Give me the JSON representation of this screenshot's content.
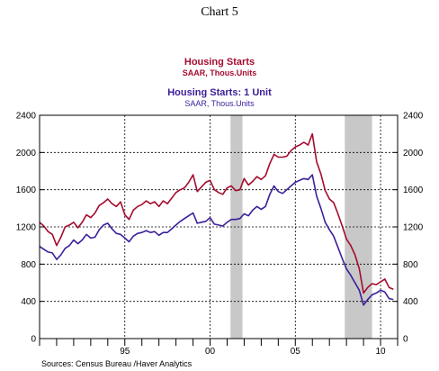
{
  "header": {
    "title": "Chart 5"
  },
  "chart_data": {
    "type": "line",
    "x_unit": "year",
    "xlim": [
      1990,
      2011
    ],
    "ylim": [
      0,
      2400
    ],
    "y_ticks": [
      0,
      400,
      800,
      1200,
      1600,
      2000,
      2400
    ],
    "x_tick_labels": [
      {
        "x": 1995,
        "label": "95"
      },
      {
        "x": 2000,
        "label": "00"
      },
      {
        "x": 2005,
        "label": "05"
      },
      {
        "x": 2010,
        "label": "10"
      }
    ],
    "grid": true,
    "recessions": [
      [
        2001.2,
        2001.9
      ],
      [
        2007.9,
        2009.5
      ]
    ],
    "colors": {
      "starts": "#a50b2e",
      "single": "#3c1e9a",
      "recession": "#c8c8c8"
    },
    "legend": [
      {
        "name": "Housing Starts",
        "subtitle": "SAAR, Thous.Units",
        "color": "#a50b2e"
      },
      {
        "name": "Housing Starts: 1 Unit",
        "subtitle": "SAAR, Thous.Units",
        "color": "#3c1e9a"
      }
    ],
    "series": [
      {
        "name": "Housing Starts",
        "x": [
          1990.0,
          1990.25,
          1990.5,
          1990.75,
          1991.0,
          1991.25,
          1991.5,
          1991.75,
          1992.0,
          1992.25,
          1992.5,
          1992.75,
          1993.0,
          1993.25,
          1993.5,
          1993.75,
          1994.0,
          1994.25,
          1994.5,
          1994.75,
          1995.0,
          1995.25,
          1995.5,
          1995.75,
          1996.0,
          1996.25,
          1996.5,
          1996.75,
          1997.0,
          1997.25,
          1997.5,
          1997.75,
          1998.0,
          1998.25,
          1998.5,
          1998.75,
          1999.0,
          1999.25,
          1999.5,
          1999.75,
          2000.0,
          2000.25,
          2000.5,
          2000.75,
          2001.0,
          2001.25,
          2001.5,
          2001.75,
          2002.0,
          2002.25,
          2002.5,
          2002.75,
          2003.0,
          2003.25,
          2003.5,
          2003.75,
          2004.0,
          2004.25,
          2004.5,
          2004.75,
          2005.0,
          2005.25,
          2005.5,
          2005.75,
          2006.0,
          2006.25,
          2006.5,
          2006.75,
          2007.0,
          2007.25,
          2007.5,
          2007.75,
          2008.0,
          2008.25,
          2008.5,
          2008.75,
          2009.0,
          2009.25,
          2009.5,
          2009.75,
          2010.0,
          2010.25,
          2010.5,
          2010.75
        ],
        "values": [
          1250,
          1210,
          1150,
          1120,
          1000,
          1090,
          1200,
          1220,
          1250,
          1190,
          1250,
          1330,
          1300,
          1350,
          1430,
          1460,
          1500,
          1450,
          1420,
          1470,
          1330,
          1280,
          1380,
          1420,
          1440,
          1480,
          1450,
          1470,
          1420,
          1480,
          1450,
          1510,
          1570,
          1600,
          1620,
          1680,
          1760,
          1580,
          1630,
          1680,
          1700,
          1600,
          1570,
          1550,
          1620,
          1640,
          1590,
          1600,
          1720,
          1650,
          1690,
          1740,
          1710,
          1750,
          1880,
          1980,
          1950,
          1950,
          1960,
          2020,
          2060,
          2080,
          2110,
          2080,
          2200,
          1900,
          1770,
          1590,
          1500,
          1460,
          1340,
          1210,
          1070,
          1000,
          900,
          750,
          490,
          550,
          590,
          580,
          610,
          640,
          550,
          530
        ]
      },
      {
        "name": "Housing Starts: 1 Unit",
        "x": [
          1990.0,
          1990.25,
          1990.5,
          1990.75,
          1991.0,
          1991.25,
          1991.5,
          1991.75,
          1992.0,
          1992.25,
          1992.5,
          1992.75,
          1993.0,
          1993.25,
          1993.5,
          1993.75,
          1994.0,
          1994.25,
          1994.5,
          1994.75,
          1995.0,
          1995.25,
          1995.5,
          1995.75,
          1996.0,
          1996.25,
          1996.5,
          1996.75,
          1997.0,
          1997.25,
          1997.5,
          1997.75,
          1998.0,
          1998.25,
          1998.5,
          1998.75,
          1999.0,
          1999.25,
          1999.5,
          1999.75,
          2000.0,
          2000.25,
          2000.5,
          2000.75,
          2001.0,
          2001.25,
          2001.5,
          2001.75,
          2002.0,
          2002.25,
          2002.5,
          2002.75,
          2003.0,
          2003.25,
          2003.5,
          2003.75,
          2004.0,
          2004.25,
          2004.5,
          2004.75,
          2005.0,
          2005.25,
          2005.5,
          2005.75,
          2006.0,
          2006.25,
          2006.5,
          2006.75,
          2007.0,
          2007.25,
          2007.5,
          2007.75,
          2008.0,
          2008.25,
          2008.5,
          2008.75,
          2009.0,
          2009.25,
          2009.5,
          2009.75,
          2010.0,
          2010.25,
          2010.5,
          2010.75
        ],
        "values": [
          990,
          960,
          930,
          920,
          850,
          900,
          970,
          1000,
          1060,
          1020,
          1060,
          1120,
          1080,
          1090,
          1170,
          1220,
          1240,
          1180,
          1130,
          1120,
          1080,
          1040,
          1100,
          1130,
          1140,
          1160,
          1140,
          1150,
          1110,
          1140,
          1140,
          1180,
          1220,
          1260,
          1290,
          1320,
          1350,
          1240,
          1250,
          1260,
          1300,
          1230,
          1220,
          1210,
          1250,
          1280,
          1280,
          1290,
          1340,
          1320,
          1380,
          1420,
          1390,
          1420,
          1550,
          1640,
          1580,
          1560,
          1600,
          1640,
          1680,
          1700,
          1720,
          1710,
          1760,
          1530,
          1400,
          1250,
          1170,
          1100,
          980,
          860,
          750,
          680,
          600,
          520,
          360,
          420,
          470,
          490,
          520,
          500,
          430,
          420
        ]
      }
    ]
  },
  "footer": {
    "source": "Sources:  Census Bureau /Haver Analytics"
  }
}
